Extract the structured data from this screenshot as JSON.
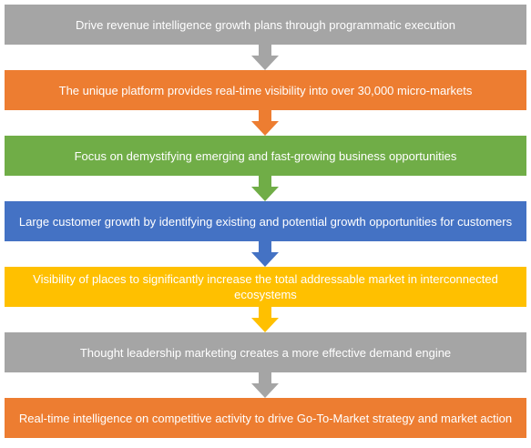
{
  "steps": [
    {
      "text": "Drive revenue intelligence growth plans through programmatic execution",
      "color": "#a5a5a5"
    },
    {
      "text": "The unique platform provides real-time visibility into over 30,000 micro-markets",
      "color": "#ed7d31"
    },
    {
      "text": "Focus on demystifying emerging and fast-growing business opportunities",
      "color": "#70ad47"
    },
    {
      "text": "Large customer growth by identifying existing and potential growth opportunities for customers",
      "color": "#4472c4"
    },
    {
      "text": "Visibility of places to significantly increase the total addressable market in interconnected ecosystems",
      "color": "#ffc000"
    },
    {
      "text": "Thought leadership marketing creates a more effective demand engine",
      "color": "#a5a5a5"
    },
    {
      "text": "Real-time intelligence on competitive activity to drive Go-To-Market strategy and market action",
      "color": "#ed7d31"
    }
  ],
  "arrows": [
    {
      "color": "#a5a5a5"
    },
    {
      "color": "#ed7d31"
    },
    {
      "color": "#70ad47"
    },
    {
      "color": "#4472c4"
    },
    {
      "color": "#ffc000"
    },
    {
      "color": "#a5a5a5"
    }
  ]
}
